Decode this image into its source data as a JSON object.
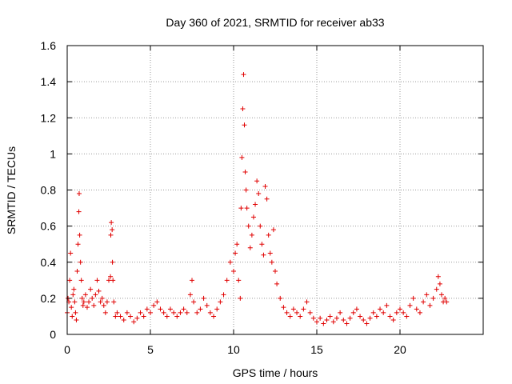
{
  "chart_data": {
    "type": "scatter",
    "title": "Day 360 of 2021, SRMTID for receiver ab33",
    "xlabel": "GPS time / hours",
    "ylabel": "SRMTID / TECUs",
    "xlim": [
      0,
      25
    ],
    "ylim": [
      0,
      1.6
    ],
    "xticks": [
      0,
      5,
      10,
      15,
      20
    ],
    "xtick_labels": [
      "0",
      "5",
      "10",
      "15",
      "20"
    ],
    "yticks": [
      0,
      0.2,
      0.4,
      0.6,
      0.8,
      1.0,
      1.2,
      1.4,
      1.6
    ],
    "ytick_labels": [
      "0",
      "0.2",
      "0.4",
      "0.6",
      "0.8",
      "1",
      "1.2",
      "1.4",
      "1.6"
    ],
    "grid": true,
    "marker": "+",
    "color": "#e00000",
    "series": [
      {
        "name": "SRMTID",
        "points": [
          [
            0.0,
            0.12
          ],
          [
            0.05,
            0.2
          ],
          [
            0.1,
            0.18
          ],
          [
            0.15,
            0.3
          ],
          [
            0.2,
            0.45
          ],
          [
            0.25,
            0.15
          ],
          [
            0.3,
            0.1
          ],
          [
            0.35,
            0.22
          ],
          [
            0.4,
            0.25
          ],
          [
            0.45,
            0.18
          ],
          [
            0.5,
            0.12
          ],
          [
            0.55,
            0.08
          ],
          [
            0.6,
            0.35
          ],
          [
            0.65,
            0.5
          ],
          [
            0.7,
            0.68
          ],
          [
            0.72,
            0.78
          ],
          [
            0.75,
            0.55
          ],
          [
            0.8,
            0.4
          ],
          [
            0.85,
            0.3
          ],
          [
            0.9,
            0.2
          ],
          [
            0.95,
            0.16
          ],
          [
            1.0,
            0.18
          ],
          [
            1.1,
            0.22
          ],
          [
            1.2,
            0.15
          ],
          [
            1.3,
            0.18
          ],
          [
            1.4,
            0.25
          ],
          [
            1.5,
            0.2
          ],
          [
            1.6,
            0.16
          ],
          [
            1.7,
            0.22
          ],
          [
            1.8,
            0.3
          ],
          [
            1.9,
            0.24
          ],
          [
            2.0,
            0.18
          ],
          [
            2.1,
            0.2
          ],
          [
            2.2,
            0.16
          ],
          [
            2.3,
            0.12
          ],
          [
            2.4,
            0.18
          ],
          [
            2.5,
            0.3
          ],
          [
            2.6,
            0.32
          ],
          [
            2.62,
            0.55
          ],
          [
            2.65,
            0.62
          ],
          [
            2.7,
            0.58
          ],
          [
            2.72,
            0.4
          ],
          [
            2.75,
            0.3
          ],
          [
            2.8,
            0.18
          ],
          [
            2.9,
            0.1
          ],
          [
            3.0,
            0.12
          ],
          [
            3.2,
            0.1
          ],
          [
            3.4,
            0.08
          ],
          [
            3.6,
            0.12
          ],
          [
            3.8,
            0.1
          ],
          [
            4.0,
            0.07
          ],
          [
            4.2,
            0.09
          ],
          [
            4.4,
            0.12
          ],
          [
            4.6,
            0.1
          ],
          [
            4.8,
            0.14
          ],
          [
            5.0,
            0.12
          ],
          [
            5.2,
            0.16
          ],
          [
            5.4,
            0.18
          ],
          [
            5.6,
            0.14
          ],
          [
            5.8,
            0.12
          ],
          [
            6.0,
            0.1
          ],
          [
            6.2,
            0.14
          ],
          [
            6.4,
            0.12
          ],
          [
            6.6,
            0.1
          ],
          [
            6.8,
            0.12
          ],
          [
            7.0,
            0.14
          ],
          [
            7.2,
            0.12
          ],
          [
            7.4,
            0.22
          ],
          [
            7.5,
            0.3
          ],
          [
            7.6,
            0.18
          ],
          [
            7.8,
            0.12
          ],
          [
            8.0,
            0.14
          ],
          [
            8.2,
            0.2
          ],
          [
            8.4,
            0.16
          ],
          [
            8.6,
            0.12
          ],
          [
            8.8,
            0.1
          ],
          [
            9.0,
            0.14
          ],
          [
            9.2,
            0.18
          ],
          [
            9.4,
            0.22
          ],
          [
            9.6,
            0.3
          ],
          [
            9.8,
            0.4
          ],
          [
            10.0,
            0.35
          ],
          [
            10.1,
            0.45
          ],
          [
            10.2,
            0.5
          ],
          [
            10.3,
            0.3
          ],
          [
            10.4,
            0.2
          ],
          [
            10.45,
            0.7
          ],
          [
            10.5,
            0.98
          ],
          [
            10.55,
            1.25
          ],
          [
            10.6,
            1.44
          ],
          [
            10.65,
            1.16
          ],
          [
            10.7,
            0.9
          ],
          [
            10.75,
            0.8
          ],
          [
            10.8,
            0.7
          ],
          [
            10.9,
            0.6
          ],
          [
            11.0,
            0.48
          ],
          [
            11.1,
            0.55
          ],
          [
            11.2,
            0.65
          ],
          [
            11.3,
            0.72
          ],
          [
            11.4,
            0.85
          ],
          [
            11.5,
            0.78
          ],
          [
            11.6,
            0.6
          ],
          [
            11.7,
            0.5
          ],
          [
            11.8,
            0.44
          ],
          [
            11.9,
            0.82
          ],
          [
            12.0,
            0.75
          ],
          [
            12.1,
            0.55
          ],
          [
            12.2,
            0.45
          ],
          [
            12.3,
            0.4
          ],
          [
            12.4,
            0.58
          ],
          [
            12.5,
            0.35
          ],
          [
            12.6,
            0.28
          ],
          [
            12.8,
            0.2
          ],
          [
            13.0,
            0.15
          ],
          [
            13.2,
            0.12
          ],
          [
            13.4,
            0.1
          ],
          [
            13.6,
            0.14
          ],
          [
            13.8,
            0.12
          ],
          [
            14.0,
            0.1
          ],
          [
            14.2,
            0.14
          ],
          [
            14.4,
            0.18
          ],
          [
            14.6,
            0.12
          ],
          [
            14.8,
            0.09
          ],
          [
            15.0,
            0.07
          ],
          [
            15.2,
            0.09
          ],
          [
            15.4,
            0.06
          ],
          [
            15.6,
            0.08
          ],
          [
            15.8,
            0.1
          ],
          [
            16.0,
            0.07
          ],
          [
            16.2,
            0.09
          ],
          [
            16.4,
            0.12
          ],
          [
            16.6,
            0.08
          ],
          [
            16.8,
            0.06
          ],
          [
            17.0,
            0.09
          ],
          [
            17.2,
            0.12
          ],
          [
            17.4,
            0.14
          ],
          [
            17.6,
            0.1
          ],
          [
            17.8,
            0.08
          ],
          [
            18.0,
            0.06
          ],
          [
            18.2,
            0.09
          ],
          [
            18.4,
            0.12
          ],
          [
            18.6,
            0.1
          ],
          [
            18.8,
            0.14
          ],
          [
            19.0,
            0.12
          ],
          [
            19.2,
            0.16
          ],
          [
            19.4,
            0.1
          ],
          [
            19.6,
            0.08
          ],
          [
            19.8,
            0.12
          ],
          [
            20.0,
            0.14
          ],
          [
            20.2,
            0.12
          ],
          [
            20.4,
            0.1
          ],
          [
            20.6,
            0.16
          ],
          [
            20.8,
            0.2
          ],
          [
            21.0,
            0.14
          ],
          [
            21.2,
            0.12
          ],
          [
            21.4,
            0.18
          ],
          [
            21.6,
            0.22
          ],
          [
            21.8,
            0.16
          ],
          [
            22.0,
            0.2
          ],
          [
            22.2,
            0.25
          ],
          [
            22.3,
            0.32
          ],
          [
            22.4,
            0.28
          ],
          [
            22.5,
            0.22
          ],
          [
            22.6,
            0.18
          ],
          [
            22.7,
            0.2
          ],
          [
            22.8,
            0.18
          ]
        ]
      }
    ]
  }
}
